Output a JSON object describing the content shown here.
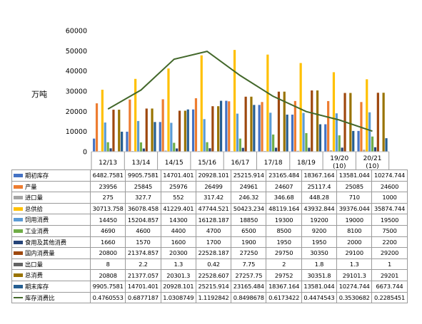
{
  "chart_data": {
    "type": "bar",
    "ylabel": "万吨",
    "ylim": [
      0,
      60000
    ],
    "yticks": [
      0,
      10000,
      20000,
      30000,
      40000,
      50000,
      60000
    ],
    "grid": false,
    "legend_placement": "table-rows",
    "categories": [
      "12/13",
      "13/14",
      "14/15",
      "15/16",
      "16/17",
      "17/18",
      "18/19",
      "19/20\n(10)",
      "20/21\n(10)"
    ],
    "series": [
      {
        "name": "期初库存",
        "kind": "bar",
        "color": "#4472c4",
        "values": [
          6482.7581,
          9905.7581,
          14701.401,
          20928.101,
          25215.914,
          23165.484,
          18367.164,
          13581.044,
          10274.744
        ],
        "labels": [
          "6482.7581",
          "9905.7581",
          "14701.401",
          "20928.101",
          "25215.914",
          "23165.484",
          "18367.164",
          "13581.044",
          "10274.744"
        ]
      },
      {
        "name": "产量",
        "kind": "bar",
        "color": "#ed7d31",
        "values": [
          23956,
          25845,
          25976,
          26499,
          24961,
          24607,
          25117.4,
          25085,
          24600
        ],
        "labels": [
          "23956",
          "25845",
          "25976",
          "26499",
          "24961",
          "24607",
          "25117.4",
          "25085",
          "24600"
        ]
      },
      {
        "name": "进口量",
        "kind": "bar",
        "color": "#a5a5a5",
        "values": [
          275,
          327.7,
          552,
          317.42,
          246.32,
          346.68,
          448.28,
          710,
          1000
        ],
        "labels": [
          "275",
          "327.7",
          "552",
          "317.42",
          "246.32",
          "346.68",
          "448.28",
          "710",
          "1000"
        ]
      },
      {
        "name": "总供给",
        "kind": "bar",
        "color": "#ffc000",
        "values": [
          30713.758,
          36078.458,
          41229.401,
          47744.521,
          50423.234,
          48119.164,
          43932.844,
          39376.044,
          35874.744
        ],
        "labels": [
          "30713.758",
          "36078.458",
          "41229.401",
          "47744.521",
          "50423.234",
          "48119.164",
          "43932.844",
          "39376.044",
          "35874.744"
        ]
      },
      {
        "name": "饲用消费",
        "kind": "bar",
        "color": "#5b9bd5",
        "values": [
          14450,
          15204.857,
          14300,
          16128.187,
          18850,
          19300,
          19200,
          19000,
          19500
        ],
        "labels": [
          "14450",
          "15204.857",
          "14300",
          "16128.187",
          "18850",
          "19300",
          "19200",
          "19000",
          "19500"
        ]
      },
      {
        "name": "工业消费",
        "kind": "bar",
        "color": "#70ad47",
        "values": [
          4690,
          4600,
          4400,
          4700,
          6500,
          8500,
          9200,
          8100,
          7500
        ],
        "labels": [
          "4690",
          "4600",
          "4400",
          "4700",
          "6500",
          "8500",
          "9200",
          "8100",
          "7500"
        ]
      },
      {
        "name": "食用及其他消费",
        "kind": "bar",
        "color": "#264478",
        "values": [
          1660,
          1570,
          1600,
          1700,
          1900,
          1950,
          1950,
          2000,
          2200
        ],
        "labels": [
          "1660",
          "1570",
          "1600",
          "1700",
          "1900",
          "1950",
          "1950",
          "2000",
          "2200"
        ]
      },
      {
        "name": "国内消费量",
        "kind": "bar",
        "color": "#9e480e",
        "values": [
          20800,
          21374.857,
          20300,
          22528.187,
          27250,
          29750,
          30350,
          29100,
          29200
        ],
        "labels": [
          "20800",
          "21374.857",
          "20300",
          "22528.187",
          "27250",
          "29750",
          "30350",
          "29100",
          "29200"
        ]
      },
      {
        "name": "出口量",
        "kind": "bar",
        "color": "#636363",
        "values": [
          8,
          2.2,
          1.3,
          0.42,
          7.75,
          2,
          1.8,
          1.3,
          1
        ],
        "labels": [
          "8",
          "2.2",
          "1.3",
          "0.42",
          "7.75",
          "2",
          "1.8",
          "1.3",
          "1"
        ]
      },
      {
        "name": "总消费",
        "kind": "bar",
        "color": "#997300",
        "values": [
          20808,
          21377.057,
          20301.3,
          22528.607,
          27257.75,
          29752,
          30351.8,
          29101.3,
          29201
        ],
        "labels": [
          "20808",
          "21377.057",
          "20301.3",
          "22528.607",
          "27257.75",
          "29752",
          "30351.8",
          "29101.3",
          "29201"
        ]
      },
      {
        "name": "期末库存",
        "kind": "bar",
        "color": "#255e91",
        "values": [
          9905.7581,
          14701.401,
          20928.101,
          25215.914,
          23165.484,
          18367.164,
          13581.044,
          10274.744,
          6673.744
        ],
        "labels": [
          "9905.7581",
          "14701.401",
          "20928.101",
          "25215.914",
          "23165.484",
          "18367.164",
          "13581.044",
          "10274.744",
          "6673.744"
        ]
      },
      {
        "name": "库存消费比",
        "kind": "line",
        "color": "#43682b",
        "values": [
          0.4760553,
          0.6877187,
          1.0308749,
          1.1192842,
          0.8498678,
          0.6173422,
          0.4474543,
          0.3530682,
          0.2285451
        ],
        "labels": [
          "0.4760553",
          "0.6877187",
          "1.0308749",
          "1.1192842",
          "0.8498678",
          "0.6173422",
          "0.4474543",
          "0.3530682",
          "0.2285451"
        ]
      }
    ]
  }
}
